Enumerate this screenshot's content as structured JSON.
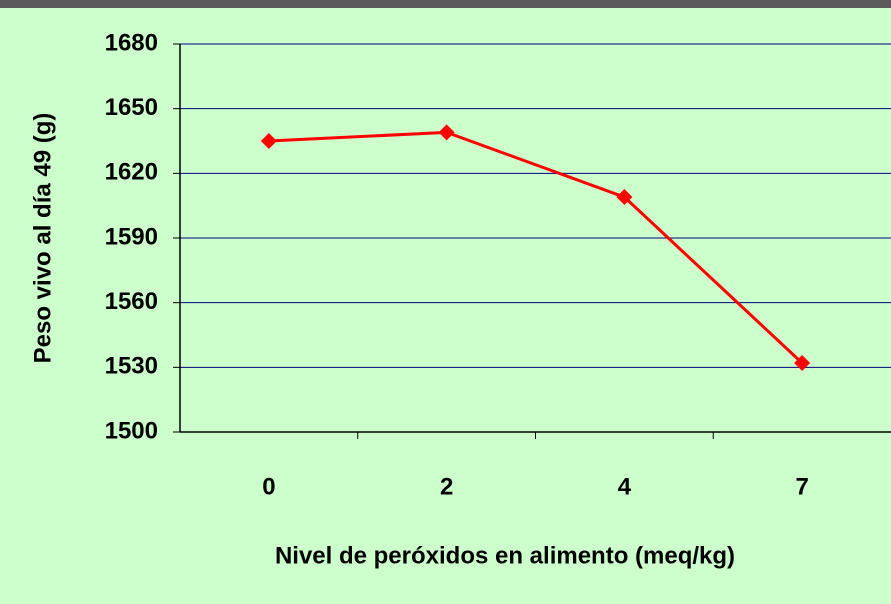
{
  "chart_data": {
    "type": "line",
    "x_label": "Nivel de peróxidos en alimento (meq/kg)",
    "y_label": "Peso vivo al día 49 (g)",
    "categories": [
      "0",
      "2",
      "4",
      "7"
    ],
    "series": [
      {
        "name": "Peso vivo",
        "color": "#ff0000",
        "values": [
          1635,
          1639,
          1609,
          1532
        ]
      }
    ],
    "ylim": [
      1500,
      1680
    ],
    "yticks": [
      1500,
      1530,
      1560,
      1590,
      1620,
      1650,
      1680
    ],
    "grid": true
  }
}
